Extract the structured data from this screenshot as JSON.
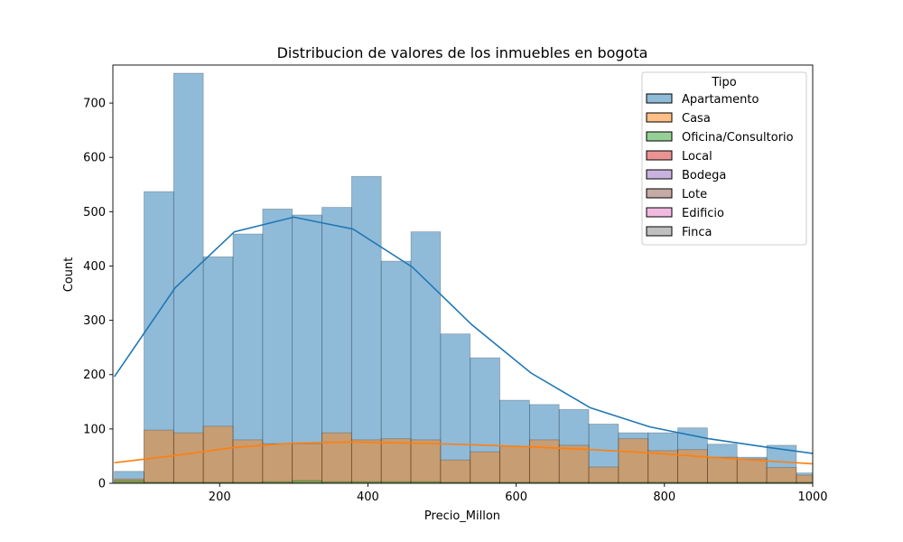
{
  "chart_data": {
    "type": "bar",
    "title": "Distribucion de valores de los inmuebles en bogota",
    "xlabel": "Precio_Millon",
    "ylabel": "Count",
    "xlim": [
      56,
      1000
    ],
    "ylim": [
      0,
      770
    ],
    "x_ticks": [
      200,
      400,
      600,
      800,
      1000
    ],
    "y_ticks": [
      0,
      100,
      200,
      300,
      400,
      500,
      600,
      700
    ],
    "grid": false,
    "legend_title": "Tipo",
    "legend_placement": "top-right",
    "bin_edges": [
      58,
      98,
      138,
      178,
      218,
      258,
      298,
      338,
      378,
      418,
      458,
      498,
      538,
      578,
      618,
      658,
      698,
      738,
      778,
      818,
      858,
      898,
      938,
      978,
      1000
    ],
    "series": [
      {
        "name": "Apartamento",
        "color": "#1f77b4",
        "values": [
          22,
          537,
          755,
          417,
          459,
          505,
          494,
          508,
          565,
          409,
          463,
          275,
          231,
          153,
          145,
          136,
          109,
          93,
          93,
          102,
          72,
          48,
          70,
          19
        ],
        "kde": [
          [
            58,
            196
          ],
          [
            140,
            360
          ],
          [
            220,
            463
          ],
          [
            300,
            490
          ],
          [
            380,
            468
          ],
          [
            460,
            398
          ],
          [
            540,
            292
          ],
          [
            620,
            203
          ],
          [
            700,
            139
          ],
          [
            780,
            104
          ],
          [
            860,
            82
          ],
          [
            940,
            66
          ],
          [
            1000,
            55
          ]
        ]
      },
      {
        "name": "Casa",
        "color": "#ff7f0e",
        "values": [
          8,
          98,
          93,
          105,
          80,
          73,
          73,
          93,
          80,
          82,
          80,
          43,
          58,
          68,
          80,
          70,
          30,
          82,
          60,
          62,
          48,
          45,
          29,
          15
        ],
        "kde": [
          [
            58,
            38
          ],
          [
            140,
            51
          ],
          [
            220,
            66
          ],
          [
            300,
            74
          ],
          [
            380,
            76
          ],
          [
            460,
            74
          ],
          [
            540,
            71
          ],
          [
            620,
            67
          ],
          [
            700,
            62
          ],
          [
            780,
            56
          ],
          [
            860,
            48
          ],
          [
            940,
            41
          ],
          [
            1000,
            36
          ]
        ]
      },
      {
        "name": "Oficina/Consultorio",
        "color": "#2ca02c",
        "values": [
          5,
          2,
          2,
          2,
          2,
          3,
          5,
          3,
          3,
          3,
          3,
          2,
          2,
          2,
          2,
          2,
          2,
          2,
          2,
          2,
          2,
          2,
          2,
          2
        ]
      },
      {
        "name": "Local",
        "color": "#d62728",
        "values": []
      },
      {
        "name": "Bodega",
        "color": "#9467bd",
        "values": []
      },
      {
        "name": "Lote",
        "color": "#8c564b",
        "values": []
      },
      {
        "name": "Edificio",
        "color": "#e377c2",
        "values": []
      },
      {
        "name": "Finca",
        "color": "#7f7f7f",
        "values": []
      }
    ]
  }
}
